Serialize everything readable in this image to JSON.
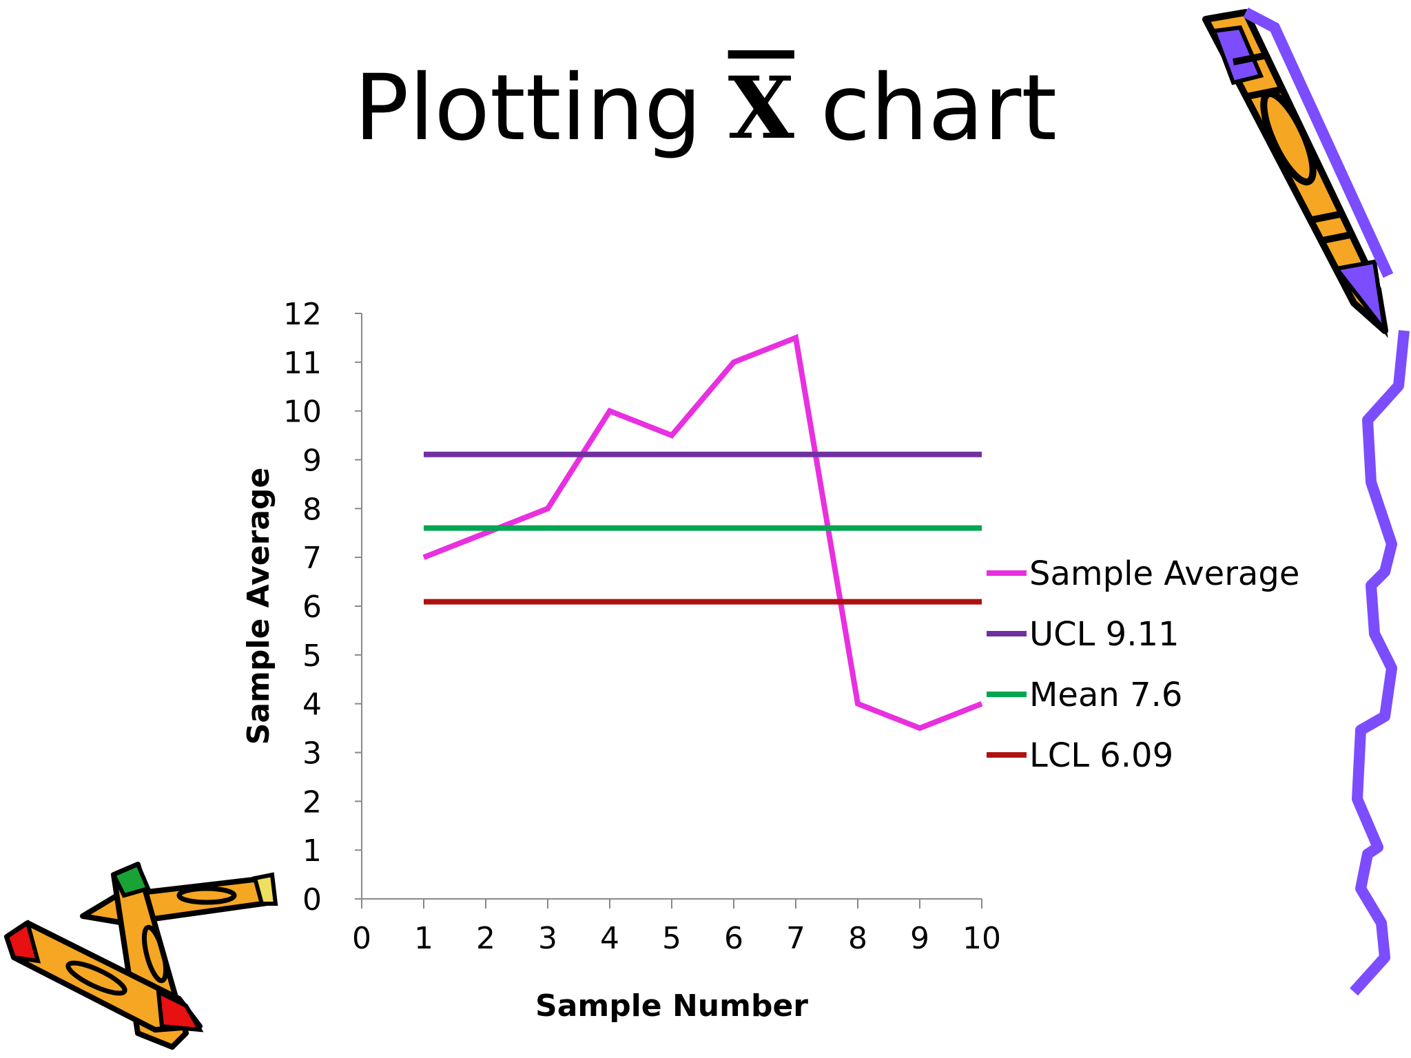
{
  "slide": {
    "title_prefix": "Plotting",
    "title_symbol": "X",
    "title_suffix": "chart"
  },
  "decorations": {
    "top_right": "pencil-clipart-icon",
    "bottom_left": "crayons-clipart-icon",
    "right_edge": "squiggle-border"
  },
  "chart_data": {
    "type": "line",
    "xlabel": "Sample Number",
    "ylabel": "Sample Average",
    "xlim": [
      0,
      10
    ],
    "ylim": [
      0,
      12
    ],
    "x_ticks": [
      0,
      1,
      2,
      3,
      4,
      5,
      6,
      7,
      8,
      9,
      10
    ],
    "y_ticks": [
      0,
      1,
      2,
      3,
      4,
      5,
      6,
      7,
      8,
      9,
      10,
      11,
      12
    ],
    "grid": false,
    "legend_position": "right",
    "series": [
      {
        "name": "Sample Average",
        "color": "#e830e0",
        "x": [
          1,
          2,
          3,
          4,
          5,
          6,
          7,
          8,
          9,
          10
        ],
        "y": [
          7,
          7.5,
          8,
          10,
          9.5,
          11,
          11.5,
          4,
          3.5,
          4
        ]
      },
      {
        "name": "UCL 9.11",
        "color": "#7030a0",
        "x": [
          1,
          2,
          3,
          4,
          5,
          6,
          7,
          8,
          9,
          10
        ],
        "y": [
          9.11,
          9.11,
          9.11,
          9.11,
          9.11,
          9.11,
          9.11,
          9.11,
          9.11,
          9.11
        ]
      },
      {
        "name": "Mean 7.6",
        "color": "#00a650",
        "x": [
          1,
          2,
          3,
          4,
          5,
          6,
          7,
          8,
          9,
          10
        ],
        "y": [
          7.6,
          7.6,
          7.6,
          7.6,
          7.6,
          7.6,
          7.6,
          7.6,
          7.6,
          7.6
        ]
      },
      {
        "name": "LCL 6.09",
        "color": "#b01010",
        "x": [
          1,
          2,
          3,
          4,
          5,
          6,
          7,
          8,
          9,
          10
        ],
        "y": [
          6.09,
          6.09,
          6.09,
          6.09,
          6.09,
          6.09,
          6.09,
          6.09,
          6.09,
          6.09
        ]
      }
    ]
  }
}
